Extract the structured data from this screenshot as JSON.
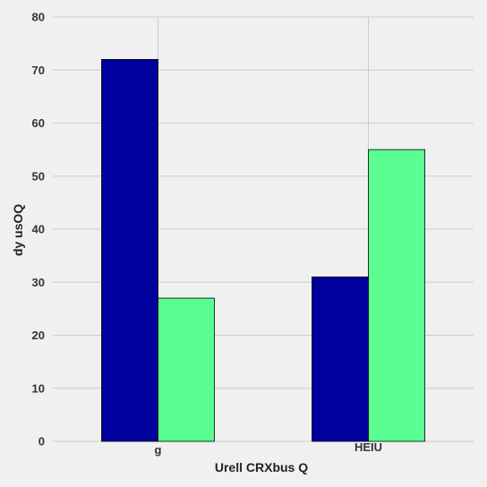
{
  "chart_data": {
    "type": "bar",
    "categories": [
      "g",
      "HEIU"
    ],
    "category_label_sizes": [
      "normal",
      "small"
    ],
    "series": [
      {
        "values": [
          72,
          31
        ],
        "color": "#00009c"
      },
      {
        "values": [
          27,
          55
        ],
        "color": "#5bff91"
      }
    ],
    "title": "",
    "xlabel": "Urell CRXbus Q",
    "ylabel": "dy  usOQ",
    "ylim": [
      0,
      80
    ],
    "yticks": [
      0,
      10,
      20,
      30,
      40,
      50,
      60,
      70,
      80
    ],
    "grid": true,
    "legend": "none",
    "background": "#f0f0f0",
    "grid_color": "#cbcbcb"
  }
}
